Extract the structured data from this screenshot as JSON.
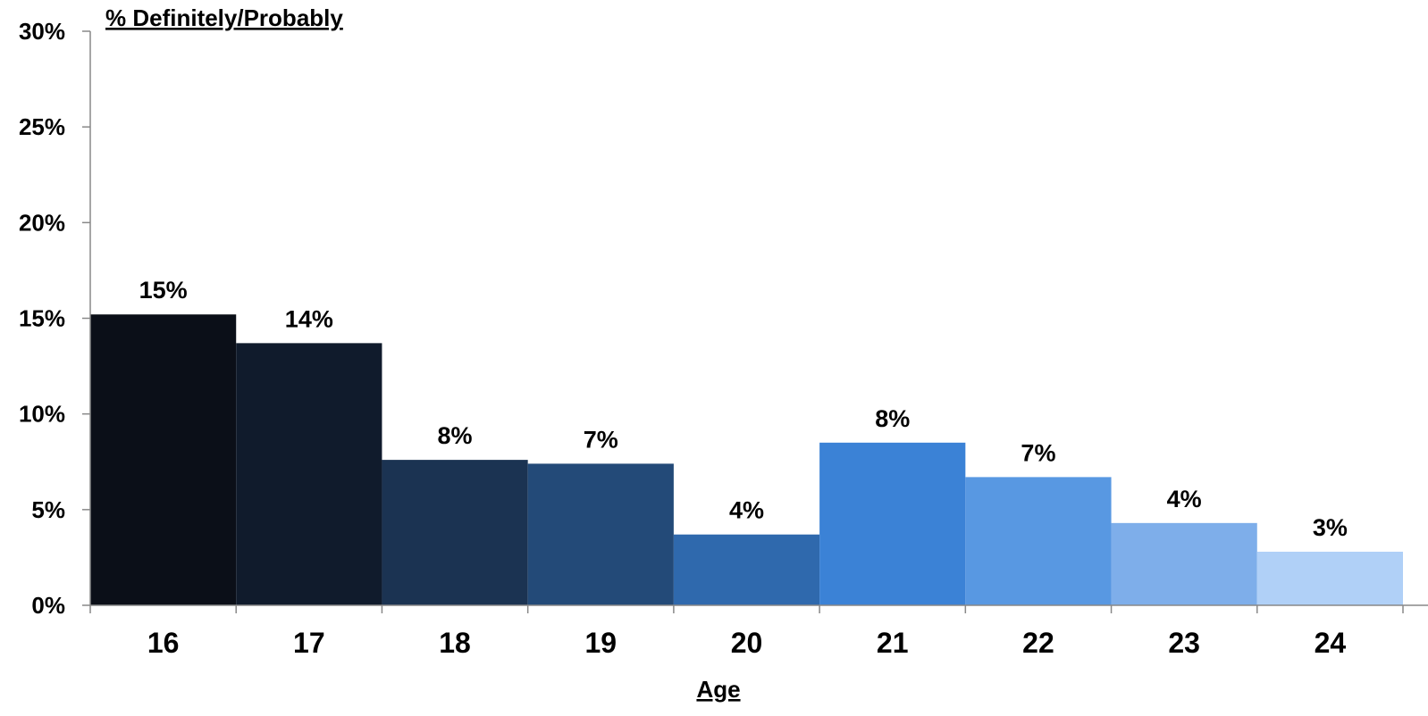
{
  "chart_data": {
    "type": "bar",
    "categories": [
      "16",
      "17",
      "18",
      "19",
      "20",
      "21",
      "22",
      "23",
      "24"
    ],
    "values": [
      15.2,
      13.7,
      7.6,
      7.4,
      3.7,
      8.5,
      6.7,
      4.3,
      2.8
    ],
    "data_labels": [
      "15%",
      "14%",
      "8%",
      "7%",
      "4%",
      "8%",
      "7%",
      "4%",
      "3%"
    ],
    "colors": [
      "#0b0f18",
      "#101b2c",
      "#1b3352",
      "#234a78",
      "#2f69ad",
      "#3b82d6",
      "#5898e2",
      "#7eaeea",
      "#b0d0f7"
    ],
    "ylabel": "% Definitely/Probably",
    "xlabel": "Age",
    "ylim": [
      0,
      30
    ],
    "yticks": [
      0,
      5,
      10,
      15,
      20,
      25,
      30
    ],
    "ytick_labels": [
      "0%",
      "5%",
      "10%",
      "15%",
      "20%",
      "25%",
      "30%"
    ],
    "grid": false,
    "legend": "none"
  }
}
